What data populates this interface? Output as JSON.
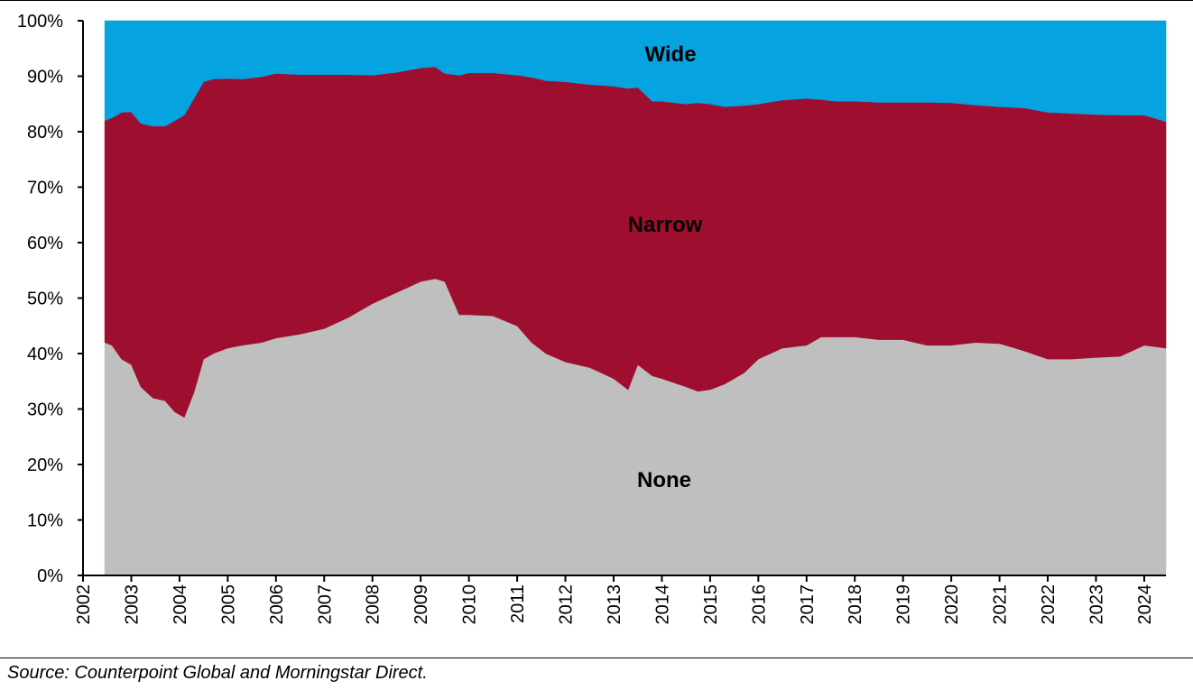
{
  "chart_data": {
    "type": "area",
    "stacked": true,
    "y_format": "percent",
    "ylim": [
      0,
      100
    ],
    "y_ticks": [
      0,
      10,
      20,
      30,
      40,
      50,
      60,
      70,
      80,
      90,
      100
    ],
    "y_tick_labels": [
      "0%",
      "10%",
      "20%",
      "30%",
      "40%",
      "50%",
      "60%",
      "70%",
      "80%",
      "90%",
      "100%"
    ],
    "xlim": [
      2002,
      2024.45
    ],
    "x_ticks": [
      2002,
      2003,
      2004,
      2005,
      2006,
      2007,
      2008,
      2009,
      2010,
      2011,
      2012,
      2013,
      2014,
      2015,
      2016,
      2017,
      2018,
      2019,
      2020,
      2021,
      2022,
      2023,
      2024
    ],
    "x_tick_labels": [
      "2002",
      "2003",
      "2004",
      "2005",
      "2006",
      "2007",
      "2008",
      "2009",
      "2010",
      "2011",
      "2012",
      "2013",
      "2014",
      "2015",
      "2016",
      "2017",
      "2018",
      "2019",
      "2020",
      "2021",
      "2022",
      "2023",
      "2024"
    ],
    "x": [
      2002.45,
      2002.6,
      2002.8,
      2003.0,
      2003.2,
      2003.45,
      2003.7,
      2003.9,
      2004.1,
      2004.3,
      2004.5,
      2004.7,
      2005.0,
      2005.3,
      2005.7,
      2006.0,
      2006.5,
      2007.0,
      2007.5,
      2008.0,
      2008.5,
      2009.0,
      2009.3,
      2009.5,
      2009.8,
      2010.0,
      2010.5,
      2011.0,
      2011.3,
      2011.6,
      2012.0,
      2012.5,
      2013.0,
      2013.3,
      2013.5,
      2013.8,
      2014.0,
      2014.5,
      2014.75,
      2015.0,
      2015.3,
      2015.7,
      2016.0,
      2016.5,
      2017.0,
      2017.3,
      2017.6,
      2018.0,
      2018.5,
      2019.0,
      2019.5,
      2020.0,
      2020.5,
      2021.0,
      2021.5,
      2022.0,
      2022.5,
      2023.0,
      2023.5,
      2024.0,
      2024.45
    ],
    "series": [
      {
        "name": "None",
        "color": "#bfbfbf",
        "values": [
          42,
          41.5,
          39,
          38,
          34,
          32,
          31.5,
          29.5,
          28.5,
          33,
          39,
          40,
          41,
          41.5,
          42,
          42.8,
          43.5,
          44.5,
          46.5,
          49,
          51,
          53,
          53.5,
          53,
          47,
          47,
          46.8,
          45,
          42,
          40,
          38.5,
          37.5,
          35.5,
          33.5,
          38,
          36,
          35.5,
          34,
          33.2,
          33.5,
          34.5,
          36.5,
          39,
          41,
          41.5,
          43,
          43,
          43,
          42.5,
          42.5,
          41.5,
          41.5,
          42,
          41.8,
          40.5,
          39,
          39,
          39.3,
          39.5,
          41.5,
          41
        ]
      },
      {
        "name": "Narrow",
        "color": "#9e0f2f",
        "values": [
          40,
          41,
          44.5,
          45.6,
          47.5,
          49,
          49.5,
          52.5,
          54.5,
          53,
          50,
          49.5,
          48.6,
          48,
          47.9,
          47.7,
          46.8,
          45.8,
          43.8,
          41.2,
          39.7,
          38.5,
          38.2,
          37.5,
          43.2,
          43.6,
          43.8,
          45.2,
          47.8,
          49.2,
          50.5,
          51,
          52.7,
          54.3,
          50,
          49.5,
          50,
          51,
          52,
          51.5,
          50,
          48.2,
          46,
          44.7,
          44.5,
          42.8,
          42.5,
          42.5,
          42.8,
          42.8,
          43.8,
          43.7,
          42.8,
          42.7,
          43.8,
          44.5,
          44.3,
          43.8,
          43.5,
          41.5,
          40.8
        ]
      },
      {
        "name": "Wide",
        "color": "#05a3e0",
        "values": [
          18,
          17.5,
          16.5,
          16.4,
          18.5,
          19,
          19,
          18,
          17,
          14,
          11,
          10.5,
          10.4,
          10.5,
          10.1,
          9.5,
          9.7,
          9.7,
          9.7,
          9.8,
          9.3,
          8.5,
          8.3,
          9.5,
          9.8,
          9.4,
          9.4,
          9.8,
          10.2,
          10.8,
          11,
          11.5,
          11.8,
          12.2,
          12,
          14.5,
          14.5,
          15,
          14.8,
          15,
          15.5,
          15.3,
          15,
          14.3,
          14,
          14.2,
          14.5,
          14.5,
          14.7,
          14.7,
          14.7,
          14.8,
          15.2,
          15.5,
          15.7,
          16.5,
          16.7,
          16.9,
          17,
          17,
          18.2
        ]
      }
    ],
    "annotations": [
      "Wide",
      "Narrow",
      "None"
    ],
    "source": "Source: Counterpoint Global and Morningstar Direct."
  }
}
